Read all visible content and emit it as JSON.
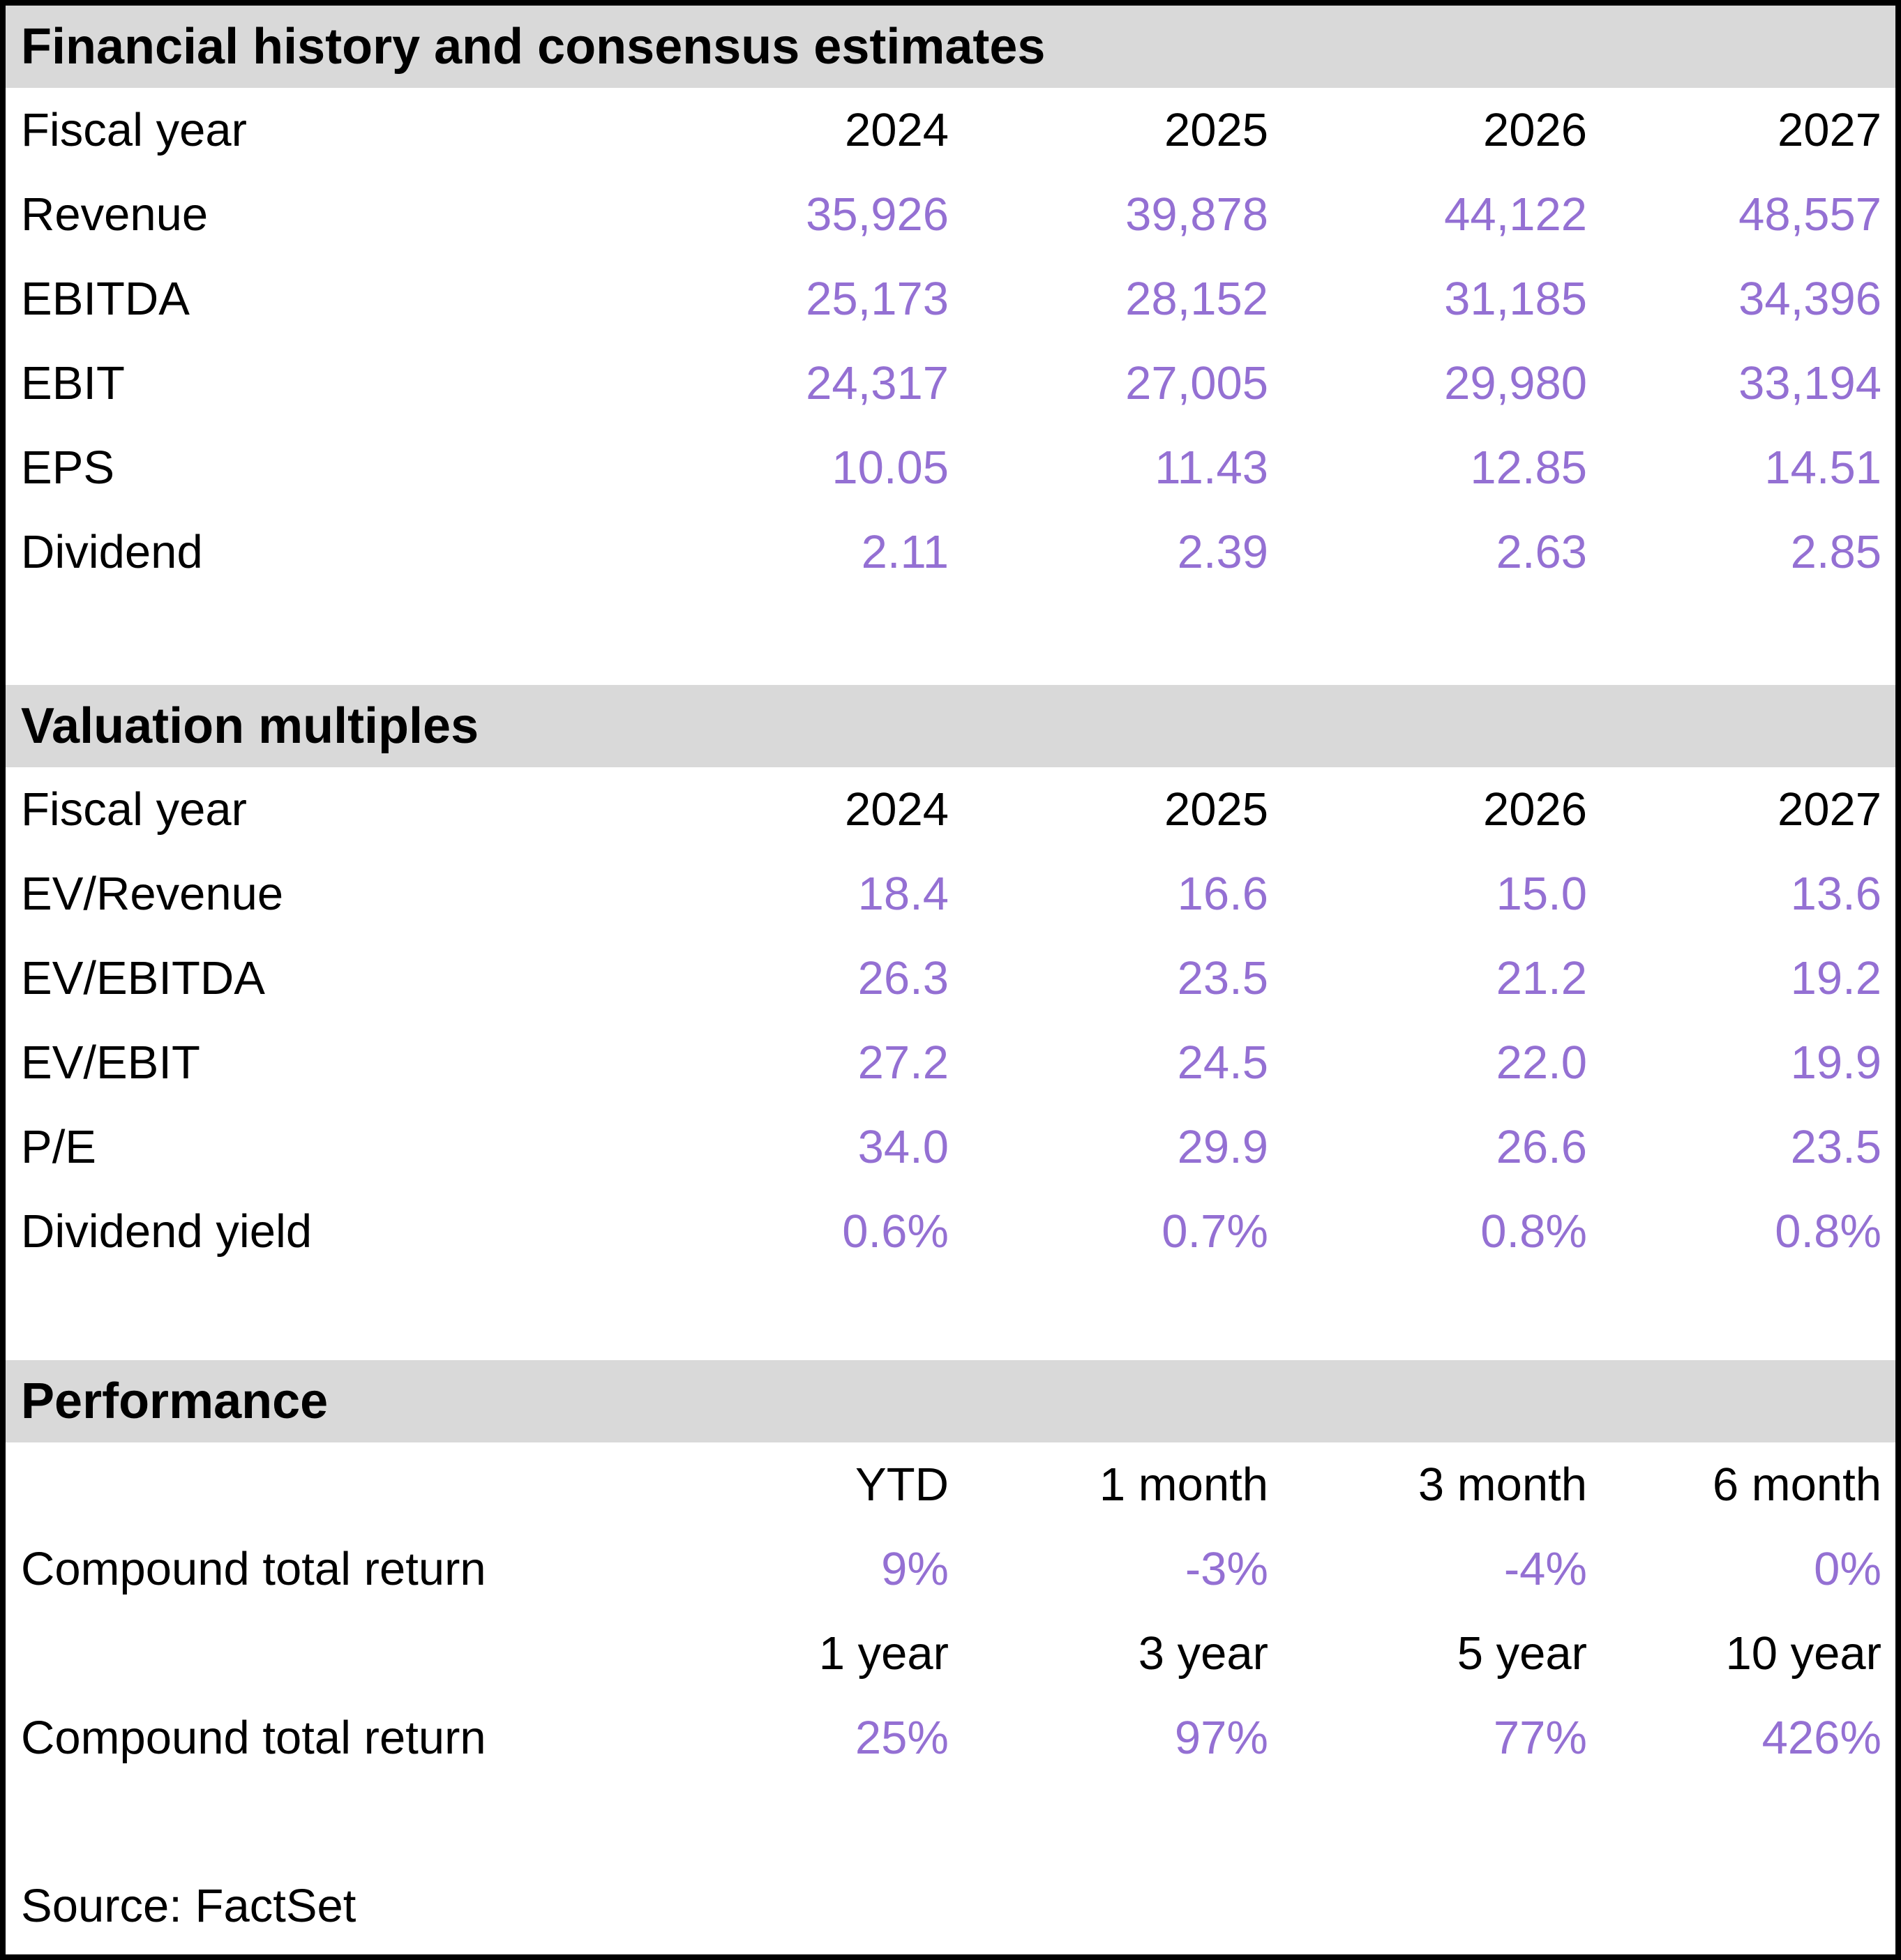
{
  "colors": {
    "accent_purple": "#9470D3",
    "section_header_bg": "#D9D9D9",
    "border_black": "#000000"
  },
  "sections": [
    {
      "title": "Financial history and consensus estimates",
      "header_row": {
        "label": "Fiscal year",
        "cols": [
          "2024",
          "2025",
          "2026",
          "2027"
        ]
      },
      "rows": [
        {
          "label": "Revenue",
          "values": [
            "35,926",
            "39,878",
            "44,122",
            "48,557"
          ]
        },
        {
          "label": "EBITDA",
          "values": [
            "25,173",
            "28,152",
            "31,185",
            "34,396"
          ]
        },
        {
          "label": "EBIT",
          "values": [
            "24,317",
            "27,005",
            "29,980",
            "33,194"
          ]
        },
        {
          "label": "EPS",
          "values": [
            "10.05",
            "11.43",
            "12.85",
            "14.51"
          ]
        },
        {
          "label": "Dividend",
          "values": [
            "2.11",
            "2.39",
            "2.63",
            "2.85"
          ]
        }
      ]
    },
    {
      "title": "Valuation multiples",
      "header_row": {
        "label": "Fiscal year",
        "cols": [
          "2024",
          "2025",
          "2026",
          "2027"
        ]
      },
      "rows": [
        {
          "label": "EV/Revenue",
          "values": [
            "18.4",
            "16.6",
            "15.0",
            "13.6"
          ]
        },
        {
          "label": "EV/EBITDA",
          "values": [
            "26.3",
            "23.5",
            "21.2",
            "19.2"
          ]
        },
        {
          "label": "EV/EBIT",
          "values": [
            "27.2",
            "24.5",
            "22.0",
            "19.9"
          ]
        },
        {
          "label": "P/E",
          "values": [
            "34.0",
            "29.9",
            "26.6",
            "23.5"
          ]
        },
        {
          "label": "Dividend yield",
          "values": [
            "0.6%",
            "0.7%",
            "0.8%",
            "0.8%"
          ]
        }
      ]
    },
    {
      "title": "Performance",
      "groups": [
        {
          "header_cols": [
            "YTD",
            "1 month",
            "3 month",
            "6 month"
          ],
          "row": {
            "label": "Compound total return",
            "values": [
              "9%",
              "-3%",
              "-4%",
              "0%"
            ]
          }
        },
        {
          "header_cols": [
            "1 year",
            "3 year",
            "5 year",
            "10 year"
          ],
          "row": {
            "label": "Compound total return",
            "values": [
              "25%",
              "97%",
              "77%",
              "426%"
            ]
          }
        }
      ]
    }
  ],
  "source": "Source: FactSet",
  "chart_data": [
    {
      "type": "table",
      "title": "Financial history and consensus estimates",
      "columns": [
        "Fiscal year",
        "2024",
        "2025",
        "2026",
        "2027"
      ],
      "rows": [
        [
          "Revenue",
          35926,
          39878,
          44122,
          48557
        ],
        [
          "EBITDA",
          25173,
          28152,
          31185,
          34396
        ],
        [
          "EBIT",
          24317,
          27005,
          29980,
          33194
        ],
        [
          "EPS",
          10.05,
          11.43,
          12.85,
          14.51
        ],
        [
          "Dividend",
          2.11,
          2.39,
          2.63,
          2.85
        ]
      ]
    },
    {
      "type": "table",
      "title": "Valuation multiples",
      "columns": [
        "Fiscal year",
        "2024",
        "2025",
        "2026",
        "2027"
      ],
      "rows": [
        [
          "EV/Revenue",
          18.4,
          16.6,
          15.0,
          13.6
        ],
        [
          "EV/EBITDA",
          26.3,
          23.5,
          21.2,
          19.2
        ],
        [
          "EV/EBIT",
          27.2,
          24.5,
          22.0,
          19.9
        ],
        [
          "P/E",
          34.0,
          29.9,
          26.6,
          23.5
        ],
        [
          "Dividend yield",
          "0.6%",
          "0.7%",
          "0.8%",
          "0.8%"
        ]
      ]
    },
    {
      "type": "table",
      "title": "Performance",
      "columns": [
        "",
        "YTD",
        "1 month",
        "3 month",
        "6 month"
      ],
      "rows": [
        [
          "Compound total return",
          "9%",
          "-3%",
          "-4%",
          "0%"
        ]
      ]
    },
    {
      "type": "table",
      "title": "Performance (long horizon)",
      "columns": [
        "",
        "1 year",
        "3 year",
        "5 year",
        "10 year"
      ],
      "rows": [
        [
          "Compound total return",
          "25%",
          "97%",
          "77%",
          "426%"
        ]
      ]
    }
  ]
}
